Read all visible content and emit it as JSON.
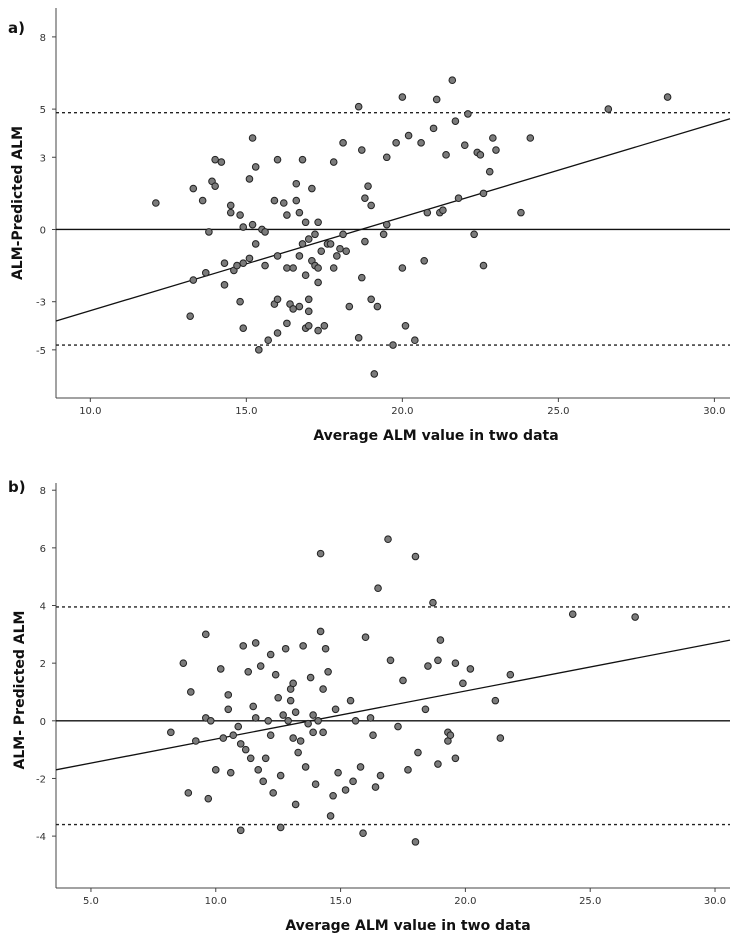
{
  "chart_data": [
    {
      "type": "scatter",
      "panel_label": "a)",
      "title": "",
      "xlabel": "Average ALM value in two data",
      "ylabel": "ALM-Predicted ALM",
      "xlim": [
        8.9,
        30.5
      ],
      "ylim": [
        -7.0,
        9.2
      ],
      "xticks": [
        10,
        15,
        20,
        25,
        30
      ],
      "xtick_labels": [
        "10.0",
        "15.0",
        "20.0",
        "25.0",
        "30.0"
      ],
      "yticks": [
        -5,
        -3,
        0,
        3,
        5,
        8
      ],
      "ytick_labels": [
        "-5",
        "-3",
        "0",
        "3",
        "5",
        "8"
      ],
      "mean_line": 0,
      "upper_loa": 4.85,
      "lower_loa": -4.8,
      "regression": {
        "x": [
          8.9,
          30.5
        ],
        "y": [
          -3.8,
          4.6
        ]
      },
      "points": [
        [
          12.1,
          1.1
        ],
        [
          13.3,
          1.7
        ],
        [
          13.3,
          -2.1
        ],
        [
          13.2,
          -3.6
        ],
        [
          13.6,
          1.2
        ],
        [
          13.7,
          -1.8
        ],
        [
          13.8,
          -0.1
        ],
        [
          13.9,
          2.0
        ],
        [
          14.0,
          1.8
        ],
        [
          14.0,
          2.9
        ],
        [
          14.2,
          2.8
        ],
        [
          14.3,
          -1.4
        ],
        [
          14.3,
          -2.3
        ],
        [
          14.5,
          0.7
        ],
        [
          14.5,
          1.0
        ],
        [
          14.6,
          -1.7
        ],
        [
          14.7,
          -1.5
        ],
        [
          14.8,
          -3.0
        ],
        [
          14.8,
          0.6
        ],
        [
          14.9,
          -1.4
        ],
        [
          14.9,
          0.1
        ],
        [
          14.9,
          -4.1
        ],
        [
          15.1,
          -1.2
        ],
        [
          15.1,
          2.1
        ],
        [
          15.2,
          3.8
        ],
        [
          15.2,
          0.2
        ],
        [
          15.3,
          2.6
        ],
        [
          15.3,
          -0.6
        ],
        [
          15.4,
          -5.0
        ],
        [
          15.5,
          0.0
        ],
        [
          15.6,
          -0.1
        ],
        [
          15.6,
          -1.5
        ],
        [
          15.7,
          -4.6
        ],
        [
          15.9,
          1.2
        ],
        [
          15.9,
          -3.1
        ],
        [
          16.0,
          -2.9
        ],
        [
          16.0,
          -1.1
        ],
        [
          16.0,
          -4.3
        ],
        [
          16.0,
          2.9
        ],
        [
          16.2,
          1.1
        ],
        [
          16.3,
          -1.6
        ],
        [
          16.3,
          -3.9
        ],
        [
          16.3,
          0.6
        ],
        [
          16.4,
          -3.1
        ],
        [
          16.5,
          -3.3
        ],
        [
          16.5,
          -1.6
        ],
        [
          16.6,
          1.9
        ],
        [
          16.6,
          1.2
        ],
        [
          16.7,
          -1.1
        ],
        [
          16.7,
          -3.2
        ],
        [
          16.7,
          0.7
        ],
        [
          16.8,
          -0.6
        ],
        [
          16.8,
          2.9
        ],
        [
          16.9,
          -4.1
        ],
        [
          16.9,
          -1.9
        ],
        [
          16.9,
          0.3
        ],
        [
          17.0,
          -0.4
        ],
        [
          17.0,
          -2.9
        ],
        [
          17.0,
          -3.4
        ],
        [
          17.0,
          -4.0
        ],
        [
          17.1,
          -1.3
        ],
        [
          17.1,
          1.7
        ],
        [
          17.2,
          -0.2
        ],
        [
          17.2,
          -1.5
        ],
        [
          17.3,
          -1.6
        ],
        [
          17.3,
          -2.2
        ],
        [
          17.3,
          0.3
        ],
        [
          17.3,
          -4.2
        ],
        [
          17.4,
          -0.9
        ],
        [
          17.5,
          -4.0
        ],
        [
          17.6,
          -0.6
        ],
        [
          17.7,
          -0.6
        ],
        [
          17.8,
          2.8
        ],
        [
          17.8,
          -1.6
        ],
        [
          17.9,
          -1.1
        ],
        [
          18.0,
          -0.8
        ],
        [
          18.1,
          3.6
        ],
        [
          18.1,
          -0.2
        ],
        [
          18.2,
          -0.9
        ],
        [
          18.3,
          -3.2
        ],
        [
          18.6,
          5.1
        ],
        [
          18.6,
          -4.5
        ],
        [
          18.7,
          3.3
        ],
        [
          18.7,
          -2.0
        ],
        [
          18.8,
          -0.5
        ],
        [
          18.8,
          1.3
        ],
        [
          18.9,
          1.8
        ],
        [
          19.0,
          -2.9
        ],
        [
          19.0,
          1.0
        ],
        [
          19.1,
          -6.0
        ],
        [
          19.2,
          -3.2
        ],
        [
          19.4,
          -0.2
        ],
        [
          19.5,
          3.0
        ],
        [
          19.5,
          0.2
        ],
        [
          19.7,
          -4.8
        ],
        [
          19.8,
          3.6
        ],
        [
          20.0,
          -1.6
        ],
        [
          20.0,
          5.5
        ],
        [
          20.1,
          -4.0
        ],
        [
          20.2,
          3.9
        ],
        [
          20.4,
          -4.6
        ],
        [
          20.6,
          3.6
        ],
        [
          20.7,
          -1.3
        ],
        [
          20.8,
          0.7
        ],
        [
          21.0,
          4.2
        ],
        [
          21.1,
          5.4
        ],
        [
          21.2,
          0.7
        ],
        [
          21.3,
          0.8
        ],
        [
          21.4,
          3.1
        ],
        [
          21.6,
          6.2
        ],
        [
          21.7,
          4.5
        ],
        [
          21.8,
          1.3
        ],
        [
          22.0,
          3.5
        ],
        [
          22.1,
          4.8
        ],
        [
          22.3,
          -0.2
        ],
        [
          22.4,
          3.2
        ],
        [
          22.5,
          3.1
        ],
        [
          22.6,
          1.5
        ],
        [
          22.6,
          -1.5
        ],
        [
          22.8,
          2.4
        ],
        [
          22.9,
          3.8
        ],
        [
          23.0,
          3.3
        ],
        [
          23.8,
          0.7
        ],
        [
          24.1,
          3.8
        ],
        [
          26.6,
          5.0
        ],
        [
          28.5,
          5.5
        ]
      ]
    },
    {
      "type": "scatter",
      "panel_label": "b)",
      "title": "",
      "xlabel": "Average ALM value in two data",
      "ylabel": "ALM- Predicted ALM",
      "xlim": [
        3.6,
        30.6
      ],
      "ylim": [
        -5.8,
        8.25
      ],
      "xticks": [
        5,
        10,
        15,
        20,
        25,
        30
      ],
      "xtick_labels": [
        "5.0",
        "10.0",
        "15.0",
        "20.0",
        "25.0",
        "30.0"
      ],
      "yticks": [
        -4,
        -2,
        0,
        2,
        4,
        6,
        8
      ],
      "ytick_labels": [
        "-4",
        "-2",
        "0",
        "2",
        "4",
        "6",
        "8"
      ],
      "mean_line": 0,
      "upper_loa": 3.95,
      "lower_loa": -3.6,
      "regression": {
        "x": [
          3.6,
          30.6
        ],
        "y": [
          -1.7,
          2.8
        ]
      },
      "points": [
        [
          8.2,
          -0.4
        ],
        [
          8.7,
          2.0
        ],
        [
          8.9,
          -2.5
        ],
        [
          9.0,
          1.0
        ],
        [
          9.2,
          -0.7
        ],
        [
          9.6,
          3.0
        ],
        [
          9.6,
          0.1
        ],
        [
          9.7,
          -2.7
        ],
        [
          9.8,
          0.0
        ],
        [
          10.0,
          -1.7
        ],
        [
          10.2,
          1.8
        ],
        [
          10.3,
          -0.6
        ],
        [
          10.5,
          0.9
        ],
        [
          10.5,
          0.4
        ],
        [
          10.6,
          -1.8
        ],
        [
          10.7,
          -0.5
        ],
        [
          10.9,
          -0.2
        ],
        [
          11.0,
          -3.8
        ],
        [
          11.0,
          -0.8
        ],
        [
          11.1,
          2.6
        ],
        [
          11.2,
          -1.0
        ],
        [
          11.3,
          1.7
        ],
        [
          11.4,
          -1.3
        ],
        [
          11.5,
          0.5
        ],
        [
          11.6,
          2.7
        ],
        [
          11.6,
          0.1
        ],
        [
          11.7,
          -1.7
        ],
        [
          11.8,
          1.9
        ],
        [
          11.9,
          -2.1
        ],
        [
          12.0,
          -1.3
        ],
        [
          12.1,
          0.0
        ],
        [
          12.2,
          2.3
        ],
        [
          12.2,
          -0.5
        ],
        [
          12.3,
          -2.5
        ],
        [
          12.4,
          1.6
        ],
        [
          12.5,
          0.8
        ],
        [
          12.6,
          -1.9
        ],
        [
          12.6,
          -3.7
        ],
        [
          12.7,
          0.2
        ],
        [
          12.8,
          2.5
        ],
        [
          12.9,
          0.0
        ],
        [
          13.0,
          1.1
        ],
        [
          13.0,
          0.7
        ],
        [
          13.1,
          -0.6
        ],
        [
          13.1,
          1.3
        ],
        [
          13.2,
          -2.9
        ],
        [
          13.2,
          0.3
        ],
        [
          13.3,
          -1.1
        ],
        [
          13.4,
          -0.7
        ],
        [
          13.5,
          2.6
        ],
        [
          13.6,
          -1.6
        ],
        [
          13.7,
          -0.1
        ],
        [
          13.8,
          1.5
        ],
        [
          13.9,
          0.2
        ],
        [
          13.9,
          -0.4
        ],
        [
          14.0,
          -2.2
        ],
        [
          14.1,
          0.0
        ],
        [
          14.2,
          5.8
        ],
        [
          14.2,
          3.1
        ],
        [
          14.3,
          1.1
        ],
        [
          14.3,
          -0.4
        ],
        [
          14.4,
          2.5
        ],
        [
          14.5,
          1.7
        ],
        [
          14.6,
          -3.3
        ],
        [
          14.7,
          -2.6
        ],
        [
          14.8,
          0.4
        ],
        [
          14.9,
          -1.8
        ],
        [
          15.2,
          -2.4
        ],
        [
          15.4,
          0.7
        ],
        [
          15.5,
          -2.1
        ],
        [
          15.6,
          0.0
        ],
        [
          15.8,
          -1.6
        ],
        [
          15.9,
          -3.9
        ],
        [
          16.0,
          2.9
        ],
        [
          16.2,
          0.1
        ],
        [
          16.3,
          -0.5
        ],
        [
          16.4,
          -2.3
        ],
        [
          16.5,
          4.6
        ],
        [
          16.6,
          -1.9
        ],
        [
          16.9,
          6.3
        ],
        [
          17.0,
          2.1
        ],
        [
          17.3,
          -0.2
        ],
        [
          17.5,
          1.4
        ],
        [
          17.7,
          -1.7
        ],
        [
          18.0,
          5.7
        ],
        [
          18.0,
          -4.2
        ],
        [
          18.1,
          -1.1
        ],
        [
          18.4,
          0.4
        ],
        [
          18.5,
          1.9
        ],
        [
          18.7,
          4.1
        ],
        [
          18.9,
          -1.5
        ],
        [
          18.9,
          2.1
        ],
        [
          19.0,
          2.8
        ],
        [
          19.3,
          -0.4
        ],
        [
          19.3,
          -0.7
        ],
        [
          19.4,
          -0.5
        ],
        [
          19.6,
          2.0
        ],
        [
          19.6,
          -1.3
        ],
        [
          19.9,
          1.3
        ],
        [
          20.2,
          1.8
        ],
        [
          21.2,
          0.7
        ],
        [
          21.4,
          -0.6
        ],
        [
          21.8,
          1.6
        ],
        [
          24.3,
          3.7
        ],
        [
          26.8,
          3.6
        ]
      ]
    }
  ]
}
